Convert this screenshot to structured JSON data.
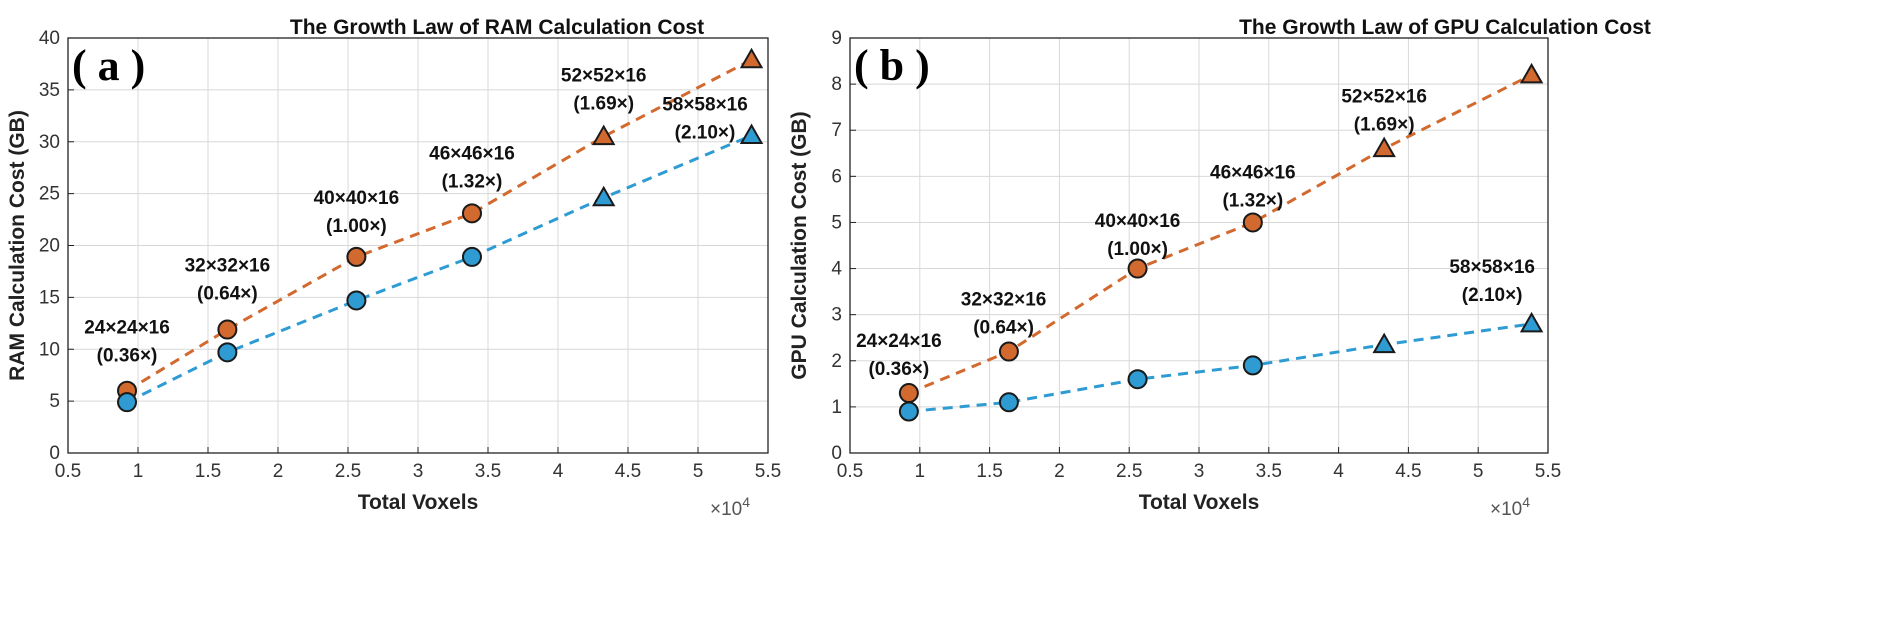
{
  "colors": {
    "orange": "#D2692F",
    "blue": "#2E9BD3",
    "grid": "#d8d8d8",
    "axis": "#222222"
  },
  "chart_data": [
    {
      "type": "scatter",
      "panel_label": "( a )",
      "title": "The Growth Law of RAM Calculation Cost",
      "xlabel": "Total Voxels",
      "ylabel": "RAM Calculation Cost (GB)",
      "x_exponent_base": "×10",
      "x_exponent_power": "4",
      "xlim": [
        0.5,
        5.5
      ],
      "ylim": [
        0,
        40
      ],
      "xticks": [
        0.5,
        1,
        1.5,
        2,
        2.5,
        3,
        3.5,
        4,
        4.5,
        5,
        5.5
      ],
      "xtick_labels": [
        "0.5",
        "1",
        "1.5",
        "2",
        "2.5",
        "3",
        "3.5",
        "4",
        "4.5",
        "5",
        "5.5"
      ],
      "yticks": [
        0,
        5,
        10,
        15,
        20,
        25,
        30,
        35,
        40
      ],
      "ytick_labels": [
        "0",
        "5",
        "10",
        "15",
        "20",
        "25",
        "30",
        "35",
        "40"
      ],
      "grid": true,
      "x": [
        0.9216,
        1.6384,
        2.56,
        3.3856,
        4.3264,
        5.3824
      ],
      "series": [
        {
          "name": "orange",
          "color": "#D2692F",
          "values": [
            6.0,
            11.9,
            18.9,
            23.1,
            30.5,
            37.9
          ],
          "markers": [
            "circle",
            "circle",
            "circle",
            "circle",
            "triangle",
            "triangle"
          ]
        },
        {
          "name": "blue",
          "color": "#2E9BD3",
          "values": [
            4.9,
            9.7,
            14.7,
            18.9,
            24.6,
            30.6
          ],
          "markers": [
            "circle",
            "circle",
            "circle",
            "circle",
            "triangle",
            "triangle"
          ]
        }
      ],
      "annotations": [
        {
          "line1": "24×24×16",
          "line2": "(0.36×)",
          "x": 0.9216,
          "y": 11.5
        },
        {
          "line1": "32×32×16",
          "line2": "(0.64×)",
          "x": 1.6384,
          "y": 17.5
        },
        {
          "line1": "40×40×16",
          "line2": "(1.00×)",
          "x": 2.56,
          "y": 24.0
        },
        {
          "line1": "46×46×16",
          "line2": "(1.32×)",
          "x": 3.3856,
          "y": 28.3
        },
        {
          "line1": "52×52×16",
          "line2": "(1.69×)",
          "x": 4.3264,
          "y": 35.8
        },
        {
          "line1": "58×58×16",
          "line2": "(2.10×)",
          "x": 5.05,
          "y": 33.0
        }
      ]
    },
    {
      "type": "scatter",
      "panel_label": "( b )",
      "title": "The Growth Law of GPU Calculation Cost",
      "xlabel": "Total Voxels",
      "ylabel": "GPU Calculation Cost (GB)",
      "x_exponent_base": "×10",
      "x_exponent_power": "4",
      "xlim": [
        0.5,
        5.5
      ],
      "ylim": [
        0,
        9
      ],
      "xticks": [
        0.5,
        1,
        1.5,
        2,
        2.5,
        3,
        3.5,
        4,
        4.5,
        5,
        5.5
      ],
      "xtick_labels": [
        "0.5",
        "1",
        "1.5",
        "2",
        "2.5",
        "3",
        "3.5",
        "4",
        "4.5",
        "5",
        "5.5"
      ],
      "yticks": [
        0,
        1,
        2,
        3,
        4,
        5,
        6,
        7,
        8,
        9
      ],
      "ytick_labels": [
        "0",
        "1",
        "2",
        "3",
        "4",
        "5",
        "6",
        "7",
        "8",
        "9"
      ],
      "grid": true,
      "x": [
        0.9216,
        1.6384,
        2.56,
        3.3856,
        4.3264,
        5.3824
      ],
      "series": [
        {
          "name": "orange",
          "color": "#D2692F",
          "values": [
            1.3,
            2.2,
            4.0,
            5.0,
            6.6,
            8.2
          ],
          "markers": [
            "circle",
            "circle",
            "circle",
            "circle",
            "triangle",
            "triangle"
          ]
        },
        {
          "name": "blue",
          "color": "#2E9BD3",
          "values": [
            0.9,
            1.1,
            1.6,
            1.9,
            2.35,
            2.8
          ],
          "markers": [
            "circle",
            "circle",
            "circle",
            "circle",
            "triangle",
            "triangle"
          ]
        }
      ],
      "annotations": [
        {
          "line1": "24×24×16",
          "line2": "(0.36×)",
          "x": 0.85,
          "y": 2.3
        },
        {
          "line1": "32×32×16",
          "line2": "(0.64×)",
          "x": 1.6,
          "y": 3.2
        },
        {
          "line1": "40×40×16",
          "line2": "(1.00×)",
          "x": 2.56,
          "y": 4.9
        },
        {
          "line1": "46×46×16",
          "line2": "(1.32×)",
          "x": 3.3856,
          "y": 5.95
        },
        {
          "line1": "52×52×16",
          "line2": "(1.69×)",
          "x": 4.3264,
          "y": 7.6
        },
        {
          "line1": "58×58×16",
          "line2": "(2.10×)",
          "x": 5.1,
          "y": 3.9
        }
      ]
    }
  ]
}
